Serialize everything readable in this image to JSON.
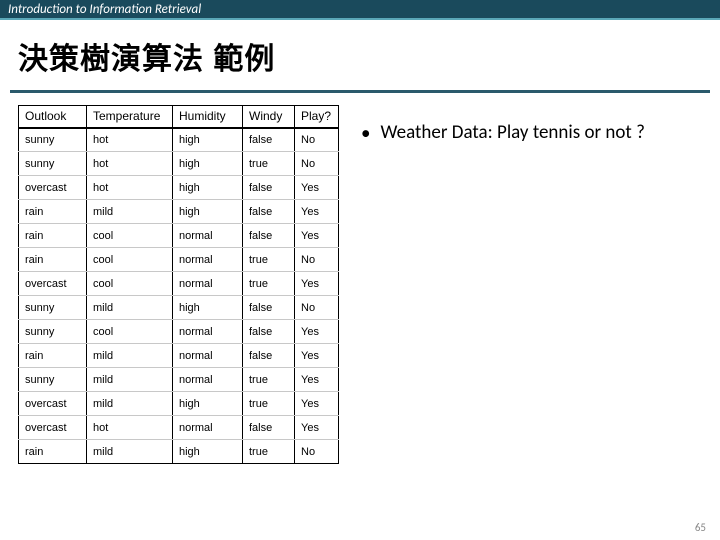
{
  "header": {
    "text": "Introduction to Information Retrieval"
  },
  "title": "決策樹演算法 範例",
  "bullet": {
    "text": "Weather Data: Play tennis or not ?"
  },
  "page_number": "65",
  "table": {
    "columns": [
      "Outlook",
      "Temperature",
      "Humidity",
      "Windy",
      "Play?"
    ],
    "col_classes": [
      "col-outlook",
      "col-temp",
      "col-hum",
      "col-windy",
      "col-play"
    ],
    "rows": [
      [
        "sunny",
        "hot",
        "high",
        "false",
        "No"
      ],
      [
        "sunny",
        "hot",
        "high",
        "true",
        "No"
      ],
      [
        "overcast",
        "hot",
        "high",
        "false",
        "Yes"
      ],
      [
        "rain",
        "mild",
        "high",
        "false",
        "Yes"
      ],
      [
        "rain",
        "cool",
        "normal",
        "false",
        "Yes"
      ],
      [
        "rain",
        "cool",
        "normal",
        "true",
        "No"
      ],
      [
        "overcast",
        "cool",
        "normal",
        "true",
        "Yes"
      ],
      [
        "sunny",
        "mild",
        "high",
        "false",
        "No"
      ],
      [
        "sunny",
        "cool",
        "normal",
        "false",
        "Yes"
      ],
      [
        "rain",
        "mild",
        "normal",
        "false",
        "Yes"
      ],
      [
        "sunny",
        "mild",
        "normal",
        "true",
        "Yes"
      ],
      [
        "overcast",
        "mild",
        "high",
        "true",
        "Yes"
      ],
      [
        "overcast",
        "hot",
        "normal",
        "false",
        "Yes"
      ],
      [
        "rain",
        "mild",
        "high",
        "true",
        "No"
      ]
    ]
  },
  "style": {
    "header_bg": "#1a4a5c",
    "header_accent": "#5ba8b8",
    "title_rule": "#2a5a6c",
    "table_border": "#000000",
    "row_divider": "#c8c8c8",
    "background": "#ffffff",
    "title_fontsize": 30,
    "bullet_fontsize": 19,
    "th_fontsize": 12,
    "td_fontsize": 11
  }
}
